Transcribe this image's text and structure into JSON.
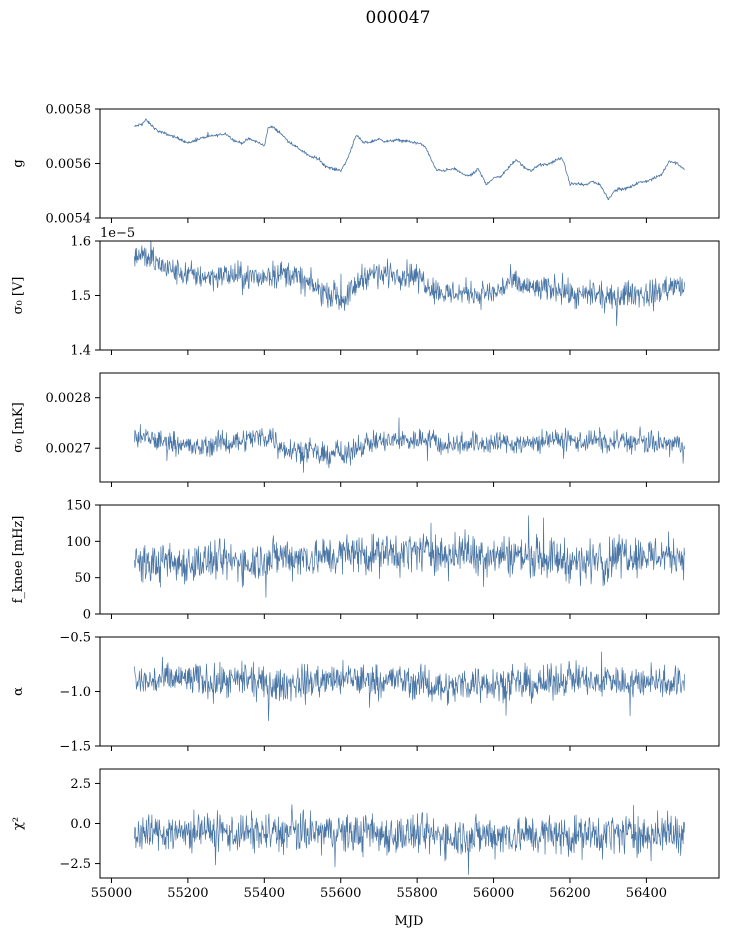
{
  "title": "000047",
  "accent_color": "#4a76a6",
  "chart_data": [
    {
      "type": "line",
      "ylabel": "g",
      "ylim": [
        0.0054,
        0.0058
      ],
      "yticks": [
        "0.0054",
        "0.0056",
        "0.0058"
      ],
      "y_offset": "",
      "series": [
        {
          "x": [
            55060,
            55080,
            55090,
            55120,
            55160,
            55180,
            55200,
            55240,
            55280,
            55300,
            55320,
            55340,
            55360,
            55380,
            55400,
            55410,
            55420,
            55440,
            55460,
            55480,
            55500,
            55520,
            55540,
            55560,
            55580,
            55600,
            55610,
            55620,
            55640,
            55660,
            55680,
            55700,
            55720,
            55740,
            55760,
            55780,
            55800,
            55820,
            55840,
            55850,
            55870,
            55900,
            55920,
            55940,
            55960,
            55980,
            56000,
            56020,
            56040,
            56060,
            56080,
            56100,
            56120,
            56140,
            56160,
            56180,
            56200,
            56220,
            56240,
            56260,
            56280,
            56300,
            56320,
            56340,
            56360,
            56380,
            56400,
            56420,
            56440,
            56460,
            56480,
            56500
          ],
          "values": [
            0.005735,
            0.005745,
            0.00576,
            0.00572,
            0.0057,
            0.00569,
            0.005675,
            0.005695,
            0.005705,
            0.00571,
            0.005685,
            0.005675,
            0.00569,
            0.00568,
            0.005665,
            0.00573,
            0.005735,
            0.005715,
            0.005685,
            0.005665,
            0.005645,
            0.005625,
            0.00562,
            0.00559,
            0.00558,
            0.005575,
            0.005595,
            0.005625,
            0.005705,
            0.005675,
            0.00568,
            0.00569,
            0.00568,
            0.005685,
            0.005685,
            0.00568,
            0.005675,
            0.005665,
            0.005605,
            0.005575,
            0.005575,
            0.00558,
            0.00556,
            0.005555,
            0.00558,
            0.005525,
            0.005545,
            0.005555,
            0.005585,
            0.005615,
            0.005585,
            0.005575,
            0.005595,
            0.005595,
            0.00561,
            0.00562,
            0.005525,
            0.005525,
            0.00552,
            0.005535,
            0.00552,
            0.00547,
            0.005505,
            0.005505,
            0.005515,
            0.00553,
            0.005535,
            0.005545,
            0.00556,
            0.00561,
            0.0056,
            0.00558
          ]
        }
      ],
      "noise": 4e-06,
      "stroke": 0.8
    },
    {
      "type": "line",
      "ylabel": "σ₀ [V]",
      "ylim": [
        1.4,
        1.6
      ],
      "yticks": [
        "1.4",
        "1.5",
        "1.6"
      ],
      "y_offset": "1e−5",
      "series": [
        {
          "x": [
            55060,
            55080,
            55100,
            55140,
            55180,
            55220,
            55260,
            55300,
            55340,
            55380,
            55420,
            55450,
            55480,
            55500,
            55520,
            55540,
            55560,
            55580,
            55600,
            55620,
            55640,
            55660,
            55680,
            55700,
            55740,
            55780,
            55810,
            55840,
            55870,
            55900,
            55920,
            55940,
            55960,
            55980,
            56000,
            56020,
            56040,
            56060,
            56080,
            56100,
            56120,
            56140,
            56160,
            56180,
            56200,
            56220,
            56240,
            56260,
            56280,
            56300,
            56320,
            56340,
            56360,
            56380,
            56400,
            56420,
            56440,
            56460,
            56480,
            56500
          ],
          "values": [
            1.571,
            1.574,
            1.567,
            1.551,
            1.541,
            1.537,
            1.535,
            1.537,
            1.536,
            1.531,
            1.54,
            1.541,
            1.537,
            1.527,
            1.52,
            1.512,
            1.504,
            1.503,
            1.493,
            1.5,
            1.52,
            1.536,
            1.54,
            1.539,
            1.54,
            1.539,
            1.532,
            1.514,
            1.503,
            1.505,
            1.505,
            1.508,
            1.501,
            1.505,
            1.503,
            1.512,
            1.525,
            1.521,
            1.516,
            1.514,
            1.512,
            1.51,
            1.515,
            1.515,
            1.5,
            1.496,
            1.499,
            1.5,
            1.499,
            1.492,
            1.495,
            1.502,
            1.505,
            1.503,
            1.501,
            1.505,
            1.51,
            1.516,
            1.518,
            1.51
          ]
        }
      ],
      "noise": 0.018,
      "stroke": 0.7
    },
    {
      "type": "line",
      "ylabel": "σ₀ [mK]",
      "ylim": [
        0.002633,
        0.002849
      ],
      "yticks": [
        "0.0027",
        "0.0028"
      ],
      "y_offset": "",
      "series": [
        {
          "x": [
            55060,
            55100,
            55140,
            55180,
            55220,
            55260,
            55300,
            55340,
            55380,
            55420,
            55440,
            55480,
            55520,
            55560,
            55590,
            55610,
            55640,
            55680,
            55720,
            55760,
            55800,
            55840,
            55860,
            55880,
            55900,
            55940,
            55980,
            56020,
            56060,
            56100,
            56140,
            56180,
            56220,
            56260,
            56280,
            56300,
            56320,
            56360,
            56400,
            56440,
            56480,
            56500
          ],
          "values": [
            0.002722,
            0.002718,
            0.002712,
            0.002712,
            0.002698,
            0.002708,
            0.002711,
            0.002716,
            0.002722,
            0.002724,
            0.002703,
            0.002698,
            0.002694,
            0.002681,
            0.002699,
            0.002678,
            0.002704,
            0.002712,
            0.002713,
            0.002716,
            0.002716,
            0.002721,
            0.002706,
            0.002705,
            0.002708,
            0.002713,
            0.002708,
            0.002712,
            0.002709,
            0.002711,
            0.002715,
            0.002716,
            0.002714,
            0.002716,
            0.002716,
            0.002705,
            0.002716,
            0.002712,
            0.00271,
            0.002708,
            0.002707,
            0.002708
          ]
        }
      ],
      "noise": 1.7e-05,
      "stroke": 0.7
    },
    {
      "type": "line",
      "ylabel": "f_knee [mHz]",
      "ylim": [
        0,
        150
      ],
      "yticks": [
        "0",
        "50",
        "100",
        "150"
      ],
      "y_offset": "",
      "series": [
        {
          "x": [
            55060,
            55120,
            55180,
            55240,
            55300,
            55360,
            55400,
            55440,
            55500,
            55560,
            55600,
            55640,
            55700,
            55760,
            55800,
            55860,
            55900,
            55910,
            55960,
            56020,
            56080,
            56140,
            56180,
            56220,
            56260,
            56280,
            56290,
            56310,
            56340,
            56400,
            56460,
            56500
          ],
          "values": [
            69,
            69,
            70,
            72,
            73,
            71,
            76,
            80,
            78,
            79,
            81,
            85,
            82,
            83,
            87,
            84,
            80,
            85,
            83,
            82,
            80,
            78,
            76,
            70,
            72,
            90,
            65,
            80,
            85,
            80,
            82,
            80
          ]
        }
      ],
      "noise": 21,
      "stroke": 0.7
    },
    {
      "type": "line",
      "ylabel": "α",
      "ylim": [
        -1.5,
        -0.5
      ],
      "yticks": [
        "−1.5",
        "−1.0",
        "−0.5"
      ],
      "y_offset": "",
      "series": [
        {
          "x": [
            55060,
            55120,
            55180,
            55240,
            55300,
            55360,
            55400,
            55440,
            55500,
            55560,
            55620,
            55680,
            55740,
            55800,
            55860,
            55900,
            55910,
            55960,
            56020,
            56080,
            56140,
            56200,
            56240,
            56280,
            56300,
            56340,
            56400,
            56460,
            56500
          ],
          "values": [
            -0.92,
            -0.9,
            -0.88,
            -0.9,
            -0.92,
            -0.9,
            -0.94,
            -0.95,
            -0.91,
            -0.9,
            -0.89,
            -0.9,
            -0.89,
            -0.92,
            -0.95,
            -0.97,
            -0.93,
            -0.91,
            -0.92,
            -0.94,
            -0.93,
            -0.86,
            -0.9,
            -0.95,
            -0.86,
            -0.93,
            -0.9,
            -0.91,
            -0.92
          ]
        }
      ],
      "noise": 0.115,
      "stroke": 0.7
    },
    {
      "type": "line",
      "ylabel": "χ²",
      "ylim": [
        -3.4,
        3.4
      ],
      "yticks": [
        "−2.5",
        "0.0",
        "2.5"
      ],
      "y_offset": "",
      "series": [
        {
          "x": [
            55060,
            55200,
            55400,
            55600,
            55800,
            55900,
            56000,
            56200,
            56280,
            56300,
            56400,
            56500
          ],
          "values": [
            -0.6,
            -0.5,
            -0.6,
            -0.6,
            -0.7,
            -0.8,
            -0.7,
            -0.7,
            -0.8,
            -0.6,
            -0.7,
            -0.6
          ]
        }
      ],
      "noise": 0.95,
      "stroke": 0.7
    }
  ],
  "x_axis": {
    "label": "MJD",
    "xlim": [
      54970,
      56590
    ],
    "ticks": [
      55000,
      55200,
      55400,
      55600,
      55800,
      56000,
      56200,
      56400
    ],
    "tick_labels": [
      "55000",
      "55200",
      "55400",
      "55600",
      "55800",
      "56000",
      "56200",
      "56400"
    ]
  }
}
